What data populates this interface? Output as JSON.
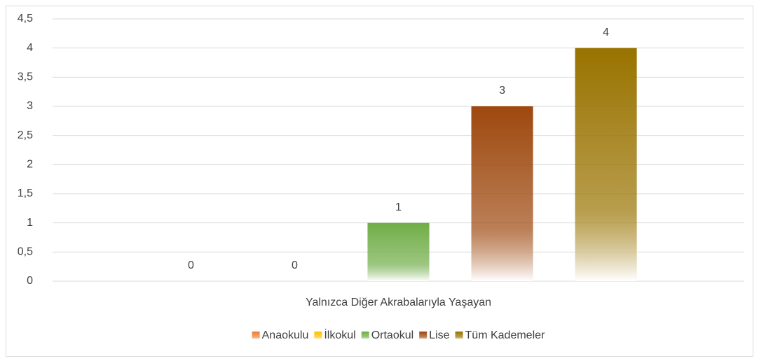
{
  "chart_data": {
    "type": "bar",
    "categories": [
      "Yalnızca Diğer Akrabalarıyla Yaşayan"
    ],
    "series": [
      {
        "name": "Anaokulu",
        "color": "#ed7d31",
        "values": [
          0
        ]
      },
      {
        "name": "İlkokul",
        "color": "#ffc000",
        "values": [
          0
        ]
      },
      {
        "name": "Ortaokul",
        "color": "#70ad47",
        "values": [
          1
        ]
      },
      {
        "name": "Lise",
        "color": "#9e480e",
        "values": [
          3
        ]
      },
      {
        "name": "Tüm Kademeler",
        "color": "#997300",
        "values": [
          4
        ]
      }
    ],
    "ylim": [
      0,
      4.5
    ],
    "yticks": [
      0,
      {
        "value": 0.5,
        "label": "0,5"
      },
      1,
      {
        "value": 1.5,
        "label": "1,5"
      },
      2,
      {
        "value": 2.5,
        "label": "2,5"
      },
      3,
      {
        "value": 3.5,
        "label": "3,5"
      },
      4,
      {
        "value": 4.5,
        "label": "4,5"
      }
    ],
    "grid": true,
    "legend": "bottom"
  }
}
